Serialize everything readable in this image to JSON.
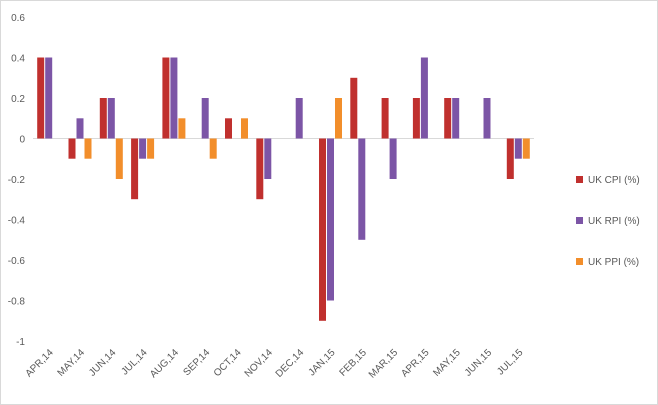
{
  "chart_data": {
    "type": "bar",
    "categories": [
      "APR,14",
      "MAY,14",
      "JUN,14",
      "JUL,14",
      "AUG,14",
      "SEP,14",
      "OCT,14",
      "NOV,14",
      "DEC,14",
      "JAN,15",
      "FEB,15",
      "MAR,15",
      "APR,15",
      "MAY,15",
      "JUN,15",
      "JUL,15"
    ],
    "series": [
      {
        "name": "UK CPI (%)",
        "color": "#c0302e",
        "values": [
          0.4,
          -0.1,
          0.2,
          -0.3,
          0.4,
          0,
          0.1,
          -0.3,
          0,
          -0.9,
          0.3,
          0.2,
          0.2,
          0.2,
          0,
          -0.2
        ]
      },
      {
        "name": "UK RPI (%)",
        "color": "#7c55a6",
        "values": [
          0.4,
          0.1,
          0.2,
          -0.1,
          0.4,
          0.2,
          0,
          -0.2,
          0.2,
          -0.8,
          -0.5,
          -0.2,
          0.4,
          0.2,
          0.2,
          -0.1
        ]
      },
      {
        "name": "UK PPI (%)",
        "color": "#f28e2b",
        "values": [
          0,
          -0.1,
          -0.2,
          -0.1,
          0.1,
          -0.1,
          0.1,
          0,
          0,
          0.2,
          0,
          0,
          0,
          0,
          0,
          -0.1
        ]
      }
    ],
    "y_ticks": [
      "0.6",
      "0.4",
      "0.2",
      "0",
      "-0.2",
      "-0.4",
      "-0.6",
      "-0.8",
      "-1"
    ],
    "ylim": [
      -1,
      0.6
    ],
    "grid": false,
    "legend_position": "right"
  }
}
